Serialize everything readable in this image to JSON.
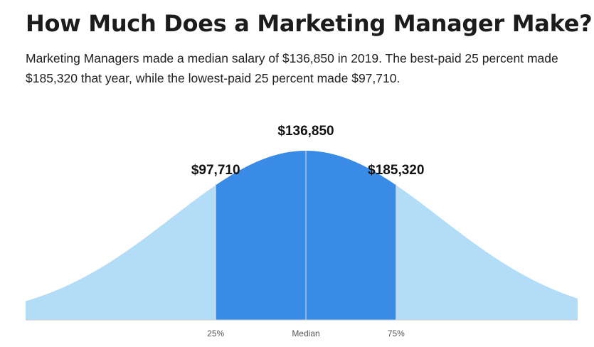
{
  "title": "How Much Does a Marketing Manager Make?",
  "description": "Marketing Managers made a median salary of $136,850 in 2019. The best-paid 25 percent made $185,320 that year, while the lowest-paid 25 percent made $97,710.",
  "colors": {
    "tail": "#b3dcf7",
    "middle": "#3a8be6",
    "divider": "#dddddd",
    "baseline": "#cccccc"
  },
  "chart_data": {
    "type": "area",
    "shape": "normal-distribution",
    "markers": [
      {
        "quantile": 0.25,
        "tick_label": "25%",
        "value_label": "$97,710"
      },
      {
        "quantile": 0.5,
        "tick_label": "Median",
        "value_label": "$136,850"
      },
      {
        "quantile": 0.75,
        "tick_label": "75%",
        "value_label": "$185,320"
      }
    ],
    "shaded_between": [
      "25%",
      "75%"
    ]
  }
}
